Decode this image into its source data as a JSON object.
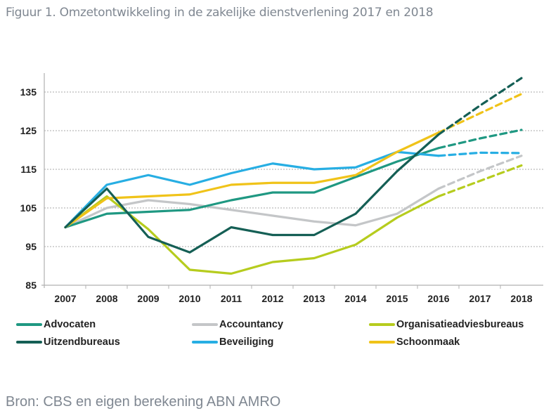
{
  "title": "Figuur 1. Omzetontwikkeling in de zakelijke dienstverlening 2017 en 2018",
  "source": "Bron: CBS en eigen berekening ABN AMRO",
  "chart_data": {
    "type": "line",
    "title": "Figuur 1. Omzetontwikkeling in de zakelijke dienstverlening 2017 en 2018",
    "xlabel": "",
    "ylabel": "",
    "x": [
      "2007",
      "2008",
      "2009",
      "2010",
      "2011",
      "2012",
      "2013",
      "2014",
      "2015",
      "2016",
      "2017",
      "2018"
    ],
    "ylim": [
      85,
      140
    ],
    "yticks": [
      85,
      95,
      105,
      115,
      125,
      135
    ],
    "grid": "horizontal-dashed",
    "legend_position": "bottom",
    "forecast_from": "2016",
    "forecast_style": "dashed",
    "series": [
      {
        "name": "Advocaten",
        "color": "#1f9882",
        "values": [
          100,
          103.5,
          104,
          104.5,
          107,
          109,
          109,
          113,
          117,
          120.5,
          123,
          125.2
        ]
      },
      {
        "name": "Accountancy",
        "color": "#c4c6c8",
        "values": [
          100,
          105,
          107,
          106,
          104.5,
          103,
          101.5,
          100.5,
          103.5,
          110,
          114.5,
          118.5
        ]
      },
      {
        "name": "Organisatieadviesbureaus",
        "color": "#b6cc1e",
        "values": [
          100,
          108,
          99.5,
          89,
          88,
          91,
          92,
          95.5,
          102.5,
          108,
          112,
          116
        ]
      },
      {
        "name": "Uitzendbureaus",
        "color": "#155f55",
        "values": [
          100,
          110,
          97.5,
          93.5,
          100,
          98,
          98,
          103.5,
          114.5,
          124,
          131.5,
          138.6
        ]
      },
      {
        "name": "Beveiliging",
        "color": "#27aee3",
        "values": [
          100,
          111,
          113.5,
          111,
          114,
          116.5,
          115,
          115.5,
          119.5,
          118.5,
          119.3,
          119.2
        ]
      },
      {
        "name": "Schoonmaak",
        "color": "#f0c319",
        "values": [
          100,
          107.5,
          108,
          108.5,
          111,
          111.5,
          111.5,
          113.5,
          119.5,
          124.5,
          129.5,
          134.5
        ]
      }
    ]
  }
}
